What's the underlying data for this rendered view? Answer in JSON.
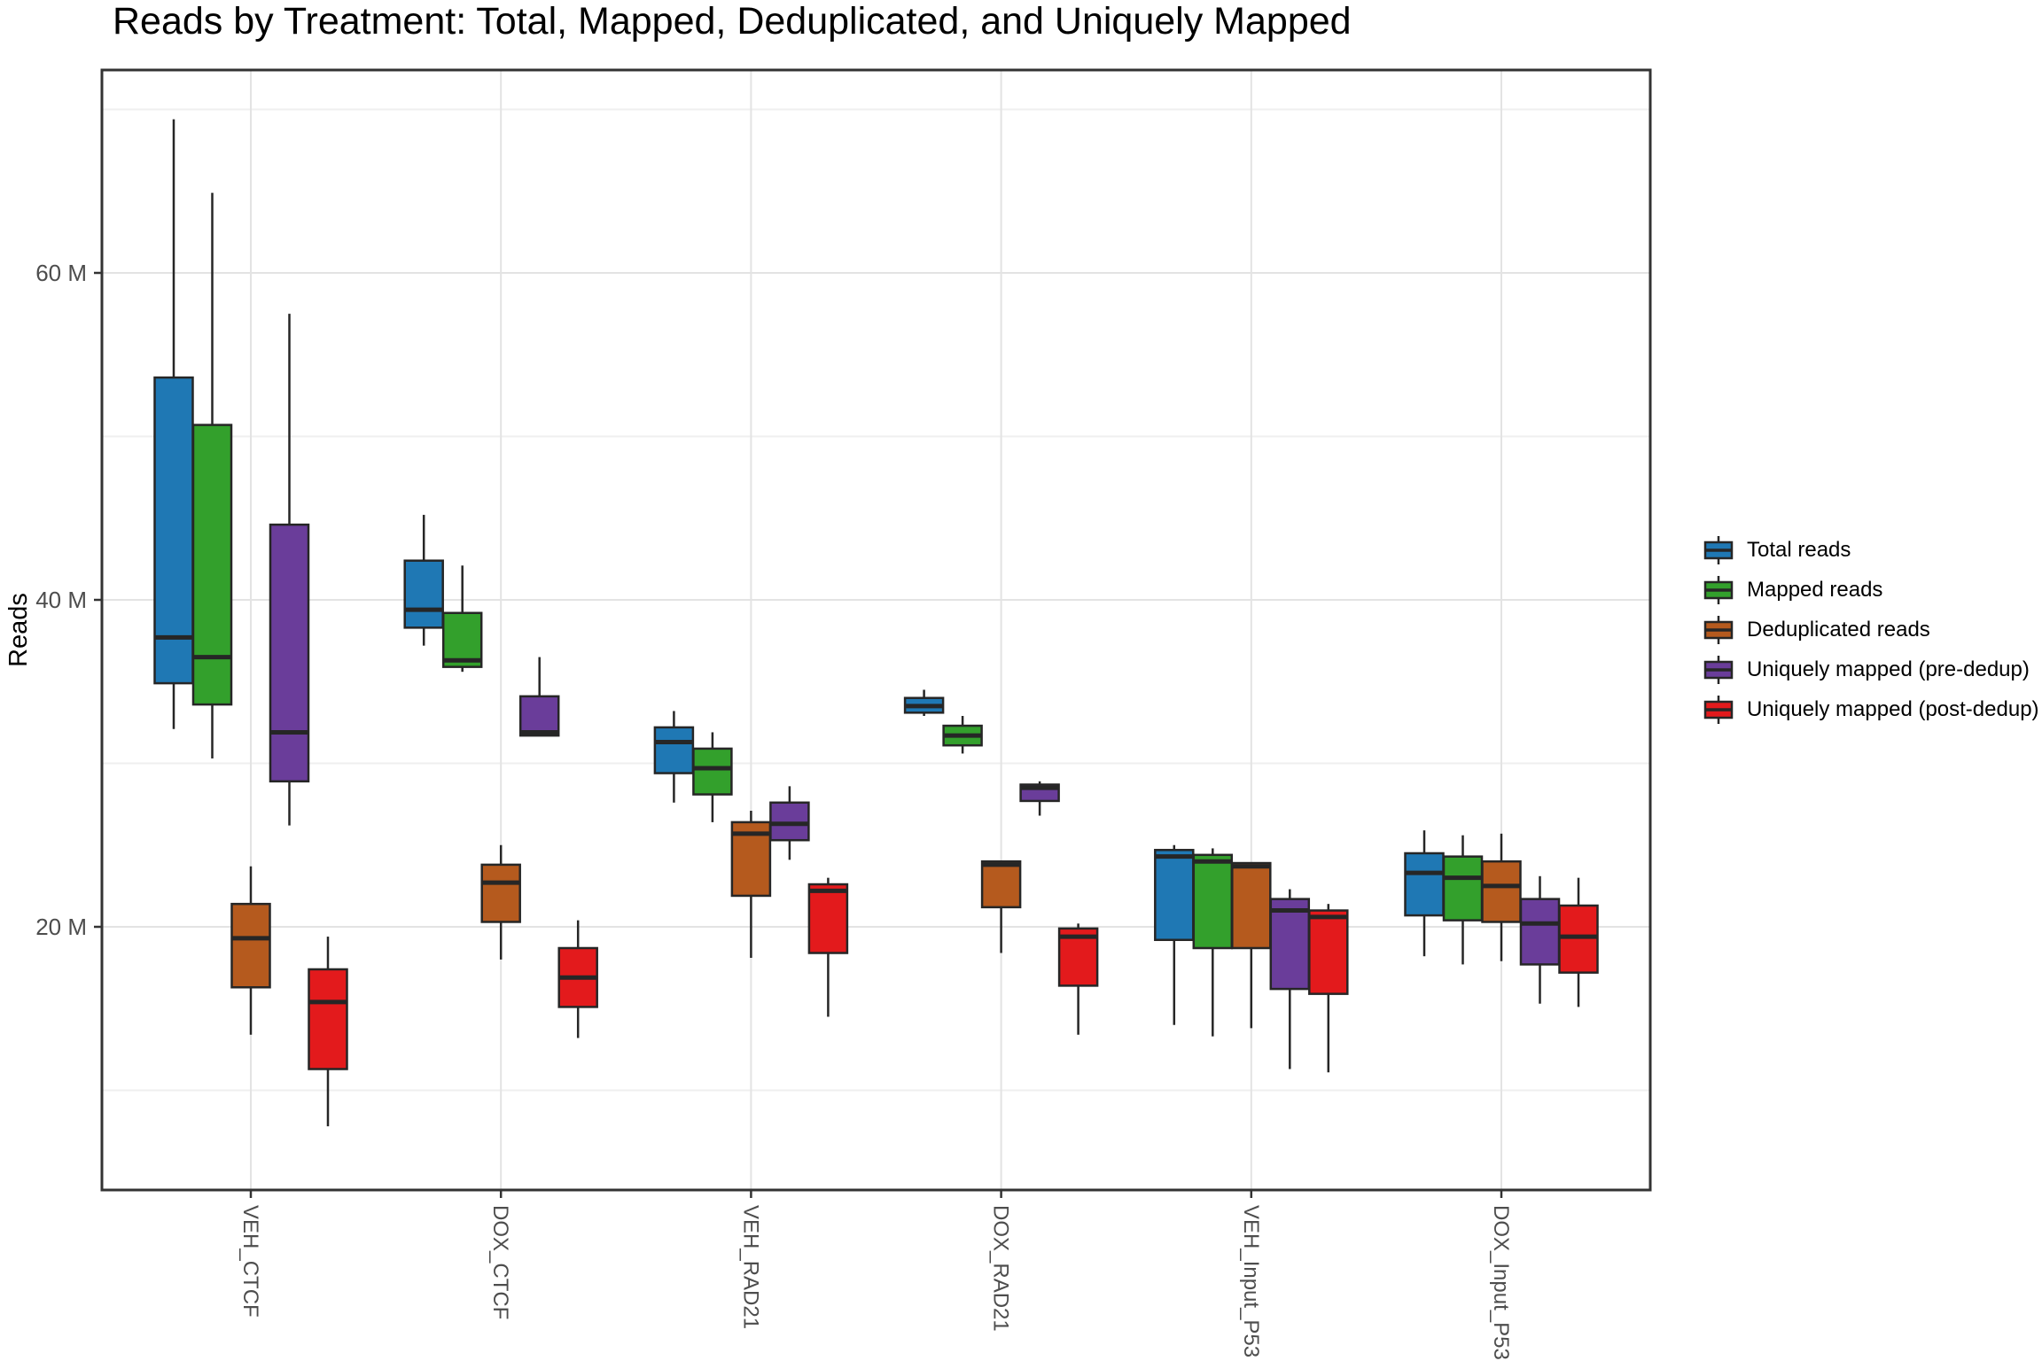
{
  "title": "Reads by Treatment: Total, Mapped, Deduplicated, and Uniquely Mapped",
  "chart_data": {
    "type": "boxplot",
    "title": "Reads by Treatment: Total, Mapped, Deduplicated, and Uniquely Mapped",
    "xlabel": "",
    "ylabel": "Reads",
    "value_unit": "millions of reads",
    "stat_order": [
      "whisker_low",
      "q1",
      "median",
      "q3",
      "whisker_high"
    ],
    "categories": [
      "VEH_CTCF",
      "DOX_CTCF",
      "VEH_RAD21",
      "DOX_RAD21",
      "VEH_Input_P53",
      "DOX_Input_P53"
    ],
    "series": [
      {
        "name": "Total reads",
        "color": "#1F78B4",
        "values": [
          [
            32.1,
            34.9,
            37.7,
            53.6,
            69.4
          ],
          [
            37.2,
            38.3,
            39.4,
            42.4,
            45.2
          ],
          [
            27.6,
            29.4,
            31.3,
            32.2,
            33.2
          ],
          [
            32.9,
            33.1,
            33.5,
            34.0,
            34.5
          ],
          [
            14.0,
            19.2,
            24.3,
            24.7,
            25.0
          ],
          [
            18.2,
            20.7,
            23.3,
            24.5,
            25.9
          ]
        ]
      },
      {
        "name": "Mapped reads",
        "color": "#33A02C",
        "values": [
          [
            30.3,
            33.6,
            36.5,
            50.7,
            64.9
          ],
          [
            35.6,
            35.9,
            36.3,
            39.2,
            42.1
          ],
          [
            26.4,
            28.1,
            29.7,
            30.9,
            31.9
          ],
          [
            30.6,
            31.1,
            31.7,
            32.3,
            32.9
          ],
          [
            13.3,
            18.7,
            24.0,
            24.4,
            24.8
          ],
          [
            17.7,
            20.4,
            23.0,
            24.3,
            25.6
          ]
        ]
      },
      {
        "name": "Deduplicated reads",
        "color": "#B55A1E",
        "values": [
          [
            13.4,
            16.3,
            19.3,
            21.4,
            23.7
          ],
          [
            18.0,
            20.3,
            22.7,
            23.8,
            25.0
          ],
          [
            18.1,
            21.9,
            25.7,
            26.4,
            27.1
          ],
          [
            18.4,
            21.2,
            23.8,
            24.0,
            24.0
          ],
          [
            13.8,
            18.7,
            23.7,
            23.9,
            23.9
          ],
          [
            17.9,
            20.3,
            22.5,
            24.0,
            25.7
          ]
        ]
      },
      {
        "name": "Uniquely mapped (pre-dedup)",
        "color": "#6A3D9A",
        "values": [
          [
            26.2,
            28.9,
            31.9,
            44.6,
            57.5
          ],
          [
            31.7,
            31.7,
            31.9,
            34.1,
            36.5
          ],
          [
            24.1,
            25.3,
            26.3,
            27.6,
            28.6
          ],
          [
            26.8,
            27.7,
            28.5,
            28.7,
            28.9
          ],
          [
            11.3,
            16.2,
            21.0,
            21.7,
            22.3
          ],
          [
            15.3,
            17.7,
            20.2,
            21.7,
            23.1
          ]
        ]
      },
      {
        "name": "Uniquely mapped (post-dedup)",
        "color": "#E31A1C",
        "values": [
          [
            7.8,
            11.3,
            15.4,
            17.4,
            19.4
          ],
          [
            13.2,
            15.1,
            16.9,
            18.7,
            20.4
          ],
          [
            14.5,
            18.4,
            22.2,
            22.6,
            23.0
          ],
          [
            13.4,
            16.4,
            19.4,
            19.9,
            20.2
          ],
          [
            11.1,
            15.9,
            20.6,
            21.0,
            21.4
          ],
          [
            15.1,
            17.2,
            19.4,
            21.3,
            23.0
          ]
        ]
      }
    ],
    "y_axis": {
      "label": "Reads",
      "tick_values": [
        20,
        40,
        60
      ],
      "tick_labels": [
        "20 M",
        "40 M",
        "60 M"
      ],
      "minor_grid_values": [
        10,
        30,
        50,
        70
      ],
      "range_millions": [
        4.0,
        72.4
      ],
      "grid": true
    },
    "legend": {
      "position": "right",
      "items": [
        "Total reads",
        "Mapped reads",
        "Deduplicated reads",
        "Uniquely mapped (pre-dedup)",
        "Uniquely mapped (post-dedup)"
      ]
    },
    "style": {
      "box_border_color": "#262626",
      "panel_border_color": "#333333",
      "major_grid_color": "#e3e3e3",
      "minor_grid_color": "#efefef",
      "axis_text_color": "#4d4d4d"
    }
  }
}
